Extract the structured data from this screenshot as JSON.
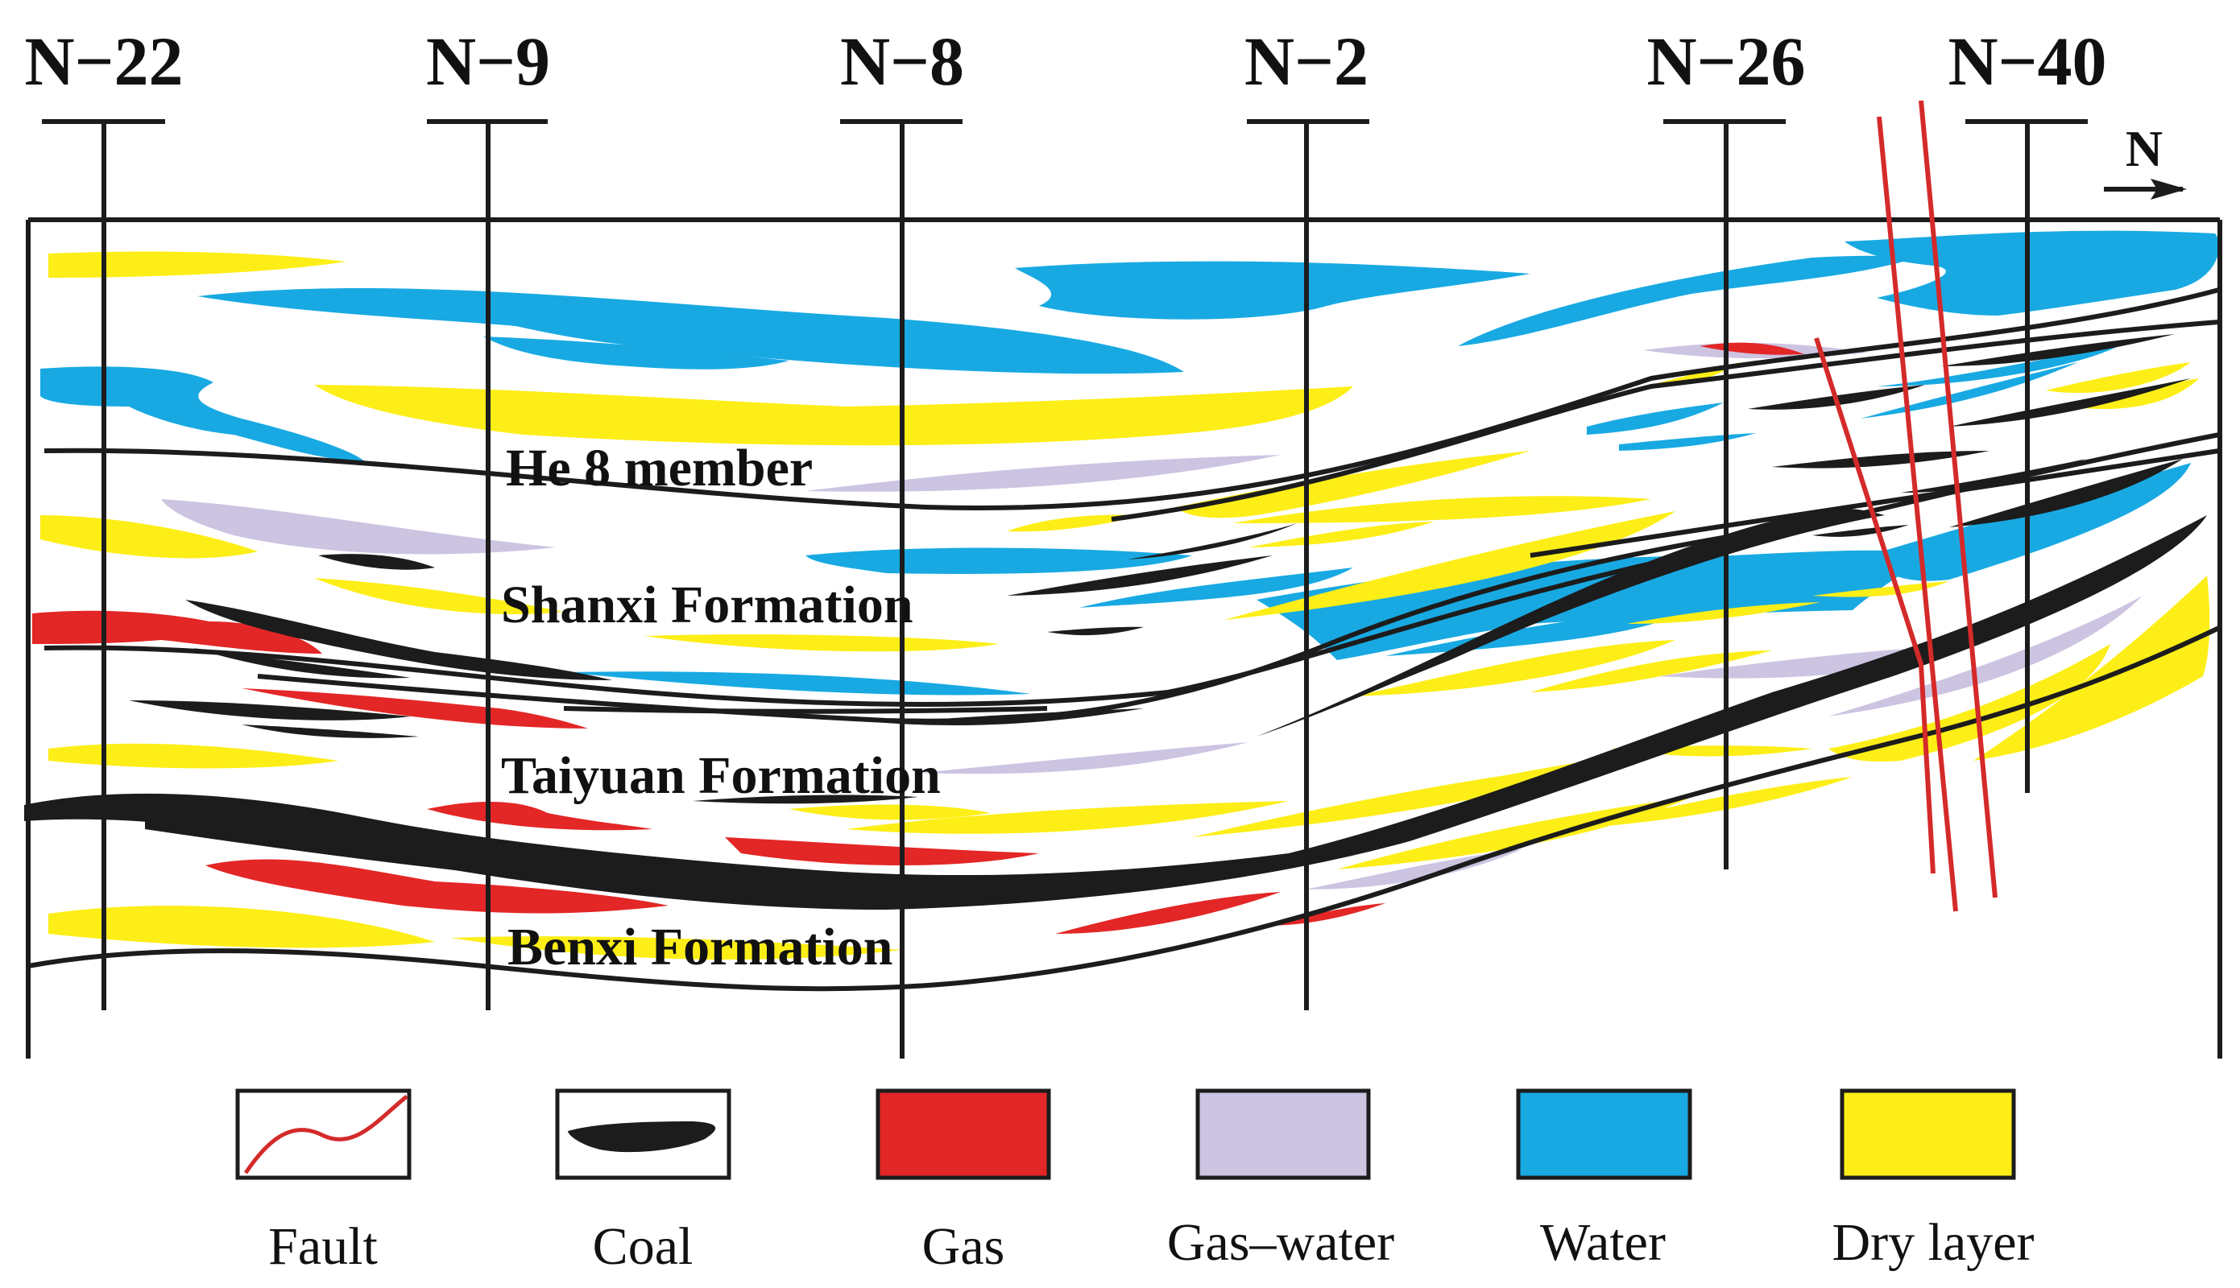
{
  "wells": [
    {
      "id": "N-22",
      "label": "N−22"
    },
    {
      "id": "N-9",
      "label": "N−9"
    },
    {
      "id": "N-8",
      "label": "N−8"
    },
    {
      "id": "N-2",
      "label": "N−2"
    },
    {
      "id": "N-26",
      "label": "N−26"
    },
    {
      "id": "N-40",
      "label": "N−40"
    }
  ],
  "north_arrow": {
    "label": "N"
  },
  "formations": {
    "he8": "He 8 member",
    "shanxi": "Shanxi Formation",
    "taiyuan": "Taiyuan Formation",
    "benxi": "Benxi Formation"
  },
  "legend": [
    {
      "key": "fault",
      "label": "Fault",
      "color": "#d42a2a"
    },
    {
      "key": "coal",
      "label": "Coal",
      "color": "#1c1c1c"
    },
    {
      "key": "gas",
      "label": "Gas",
      "color": "#e32626"
    },
    {
      "key": "gas-water",
      "label": "Gas–water",
      "color": "#cdc4e2"
    },
    {
      "key": "water",
      "label": "Water",
      "color": "#18a9e2"
    },
    {
      "key": "dry",
      "label": "Dry layer",
      "color": "#fdee17"
    }
  ],
  "colors": {
    "line": "#1c1c1c",
    "fault": "#d42a2a",
    "gas": "#e32626",
    "gas_water": "#cdc4e2",
    "water": "#18a9e2",
    "dry": "#fdee17",
    "coal": "#1c1c1c"
  }
}
